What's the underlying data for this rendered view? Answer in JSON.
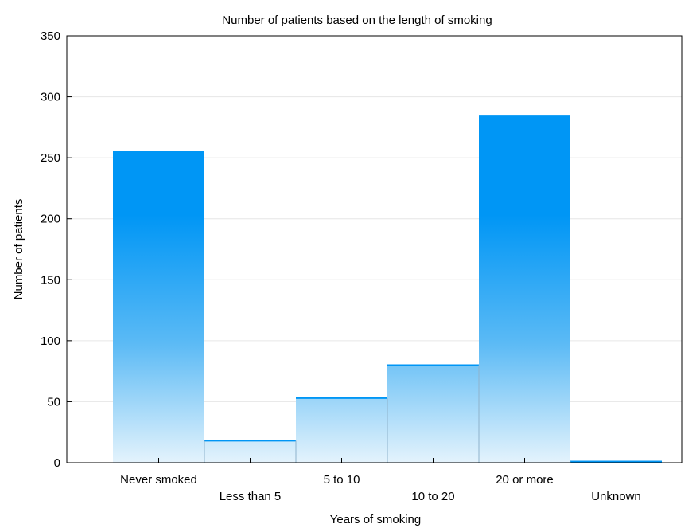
{
  "chart_data": {
    "type": "bar",
    "title": "Number of patients based on the length of smoking",
    "xlabel": "Years of smoking",
    "ylabel": "Number of patients",
    "categories": [
      "Never smoked",
      "Less than 5",
      "5 to 10",
      "10 to 20",
      "20 or more",
      "Unknown"
    ],
    "values": [
      255,
      18,
      53,
      80,
      284,
      1
    ],
    "ylim": [
      0,
      350
    ],
    "yticks": [
      0,
      50,
      100,
      150,
      200,
      250,
      300,
      350
    ],
    "grid": true,
    "legend": "none",
    "colors": {
      "bar_top": "#0096f5",
      "bar_mid": "#5bbaf5",
      "bar_bottom": "#e4f3fc",
      "grid": "#e6e6e6",
      "axis": "#000000"
    }
  }
}
